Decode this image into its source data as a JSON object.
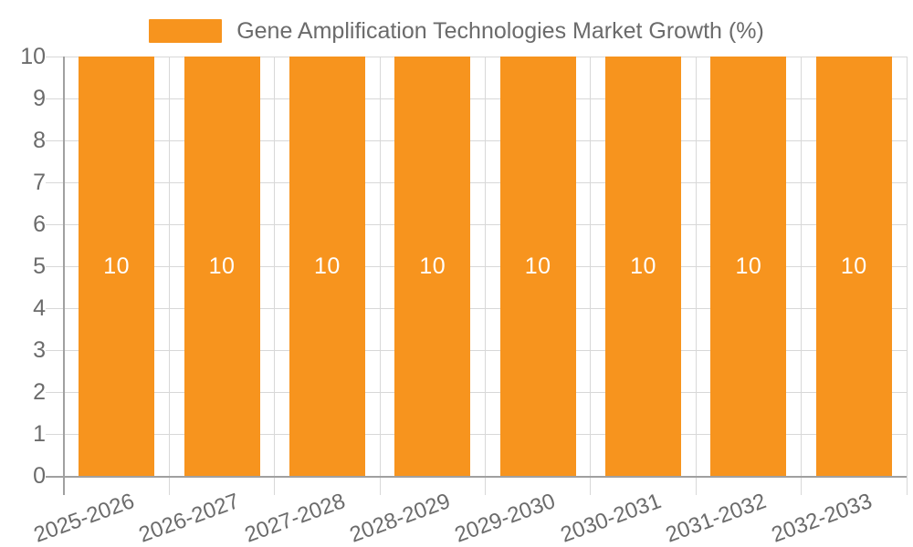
{
  "legend": {
    "label": "Gene Amplification Technologies Market Growth (%)"
  },
  "colors": {
    "bar": "#f7941e",
    "bar_label": "#ffffff",
    "grid_line": "#d8d8d8",
    "axis_line": "#a0a0a0",
    "text": "#6b6b6b",
    "background": "#ffffff"
  },
  "chart_data": {
    "type": "bar",
    "title": "Gene Amplification Technologies Market Growth (%)",
    "categories": [
      "2025-2026",
      "2026-2027",
      "2027-2028",
      "2028-2029",
      "2029-2030",
      "2030-2031",
      "2031-2032",
      "2032-2033"
    ],
    "values": [
      10,
      10,
      10,
      10,
      10,
      10,
      10,
      10
    ],
    "value_labels": [
      "10",
      "10",
      "10",
      "10",
      "10",
      "10",
      "10",
      "10"
    ],
    "xlabel": "",
    "ylabel": "",
    "ylim": [
      0,
      10
    ],
    "yticks": [
      0,
      1,
      2,
      3,
      4,
      5,
      6,
      7,
      8,
      9,
      10
    ],
    "grid": true,
    "legend_position": "top-center",
    "x_tick_rotation_deg": -20,
    "bar_label_position": "center"
  }
}
